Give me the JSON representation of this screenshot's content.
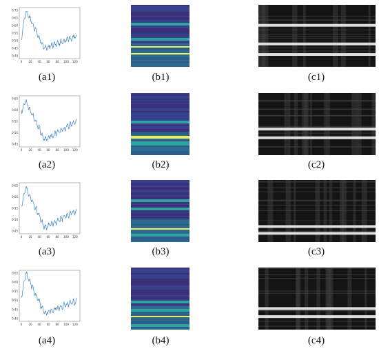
{
  "figure": {
    "rows": [
      {
        "line_plot": {
          "caption": "(a1)",
          "y_ticks": [
            "0.75",
            "0.65",
            "0.60",
            "0.55",
            "0.50",
            "0.45",
            "0.40"
          ],
          "x_ticks": [
            "0",
            "20",
            "40",
            "60",
            "80",
            "100",
            "120"
          ]
        },
        "heatmap": {
          "caption": "(b1)"
        },
        "grayscale": {
          "caption": "(c1)"
        }
      },
      {
        "line_plot": {
          "caption": "(a2)",
          "y_ticks": [
            "0.65",
            "0.60",
            "0.55",
            "0.50",
            "0.45"
          ],
          "x_ticks": [
            "0",
            "20",
            "40",
            "60",
            "80",
            "100",
            "120"
          ]
        },
        "heatmap": {
          "caption": "(b2)"
        },
        "grayscale": {
          "caption": "(c2)"
        }
      },
      {
        "line_plot": {
          "caption": "(a3)",
          "y_ticks": [
            "0.65",
            "0.60",
            "0.55",
            "0.50",
            "0.45"
          ],
          "x_ticks": [
            "0",
            "20",
            "40",
            "60",
            "80",
            "100",
            "120"
          ]
        },
        "heatmap": {
          "caption": "(b3)"
        },
        "grayscale": {
          "caption": "(c3)"
        }
      },
      {
        "line_plot": {
          "caption": "(a4)",
          "y_ticks": [
            "0.65",
            "0.60",
            "0.55",
            "0.50",
            "0.45",
            "0.40"
          ],
          "x_ticks": [
            "0",
            "20",
            "40",
            "60",
            "80",
            "100",
            "120"
          ]
        },
        "heatmap": {
          "caption": "(b4)"
        },
        "grayscale": {
          "caption": "(c4)"
        }
      }
    ]
  },
  "colors": {
    "line": "#3b82c4",
    "heatmap_base": "#3f2a78",
    "heatmap_mid": "#2f5f8a",
    "heatmap_bright": "#f0f05a",
    "gray_bg": "#141414",
    "gray_band": "#f2f2f2"
  }
}
